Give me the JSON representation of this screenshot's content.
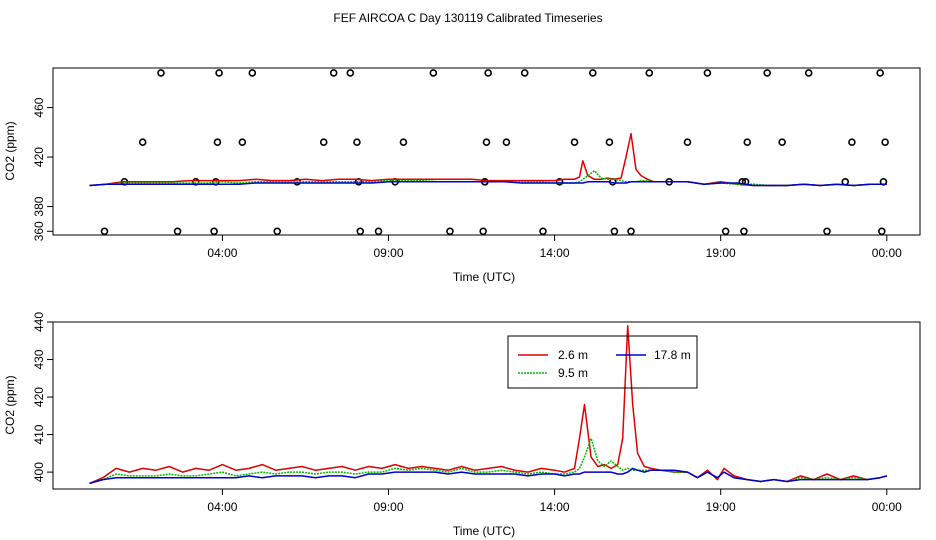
{
  "title": "FEF AIRCOA C  Day 130119  Calibrated Timeseries",
  "colors": {
    "s1": "#e00000",
    "s2": "#00bb00",
    "s3": "#0000cc"
  },
  "chart_data": [
    {
      "type": "line",
      "panel": "top",
      "xlabel": "Time (UTC)",
      "ylabel": "CO2 (ppm)",
      "xlim": [
        -1.1,
        25.0
      ],
      "ylim": [
        357,
        492
      ],
      "xticks": [
        4,
        9,
        14,
        19,
        24
      ],
      "xticklabels": [
        "04:00",
        "09:00",
        "14:00",
        "19:00",
        "00:00"
      ],
      "yticks": [
        360,
        380,
        420,
        460
      ],
      "yticklabels": [
        "360",
        "380",
        "420",
        "460"
      ],
      "calibration_points": {
        "marker": "open-circle",
        "x": [
          0.45,
          1.05,
          1.6,
          2.15,
          2.65,
          3.2,
          3.75,
          3.8,
          3.85,
          3.9,
          4.6,
          4.9,
          5.65,
          6.25,
          7.05,
          7.35,
          7.85,
          8.05,
          8.1,
          8.15,
          8.7,
          9.2,
          9.45,
          10.35,
          10.85,
          11.9,
          11.85,
          11.9,
          11.95,
          12.0,
          12.55,
          13.1,
          13.65,
          14.15,
          14.6,
          15.15,
          15.65,
          15.75,
          15.8,
          16.3,
          16.85,
          17.45,
          18.0,
          18.6,
          19.15,
          19.65,
          19.7,
          19.75,
          19.8,
          20.4,
          20.85,
          21.65,
          22.2,
          22.75,
          22.95,
          23.8,
          23.85,
          23.9,
          23.95
        ],
        "y": [
          360,
          400,
          432,
          488,
          360,
          400,
          360,
          400,
          432,
          488,
          432,
          488,
          360,
          400,
          432,
          488,
          488,
          432,
          400,
          360,
          360,
          400,
          432,
          488,
          360,
          400,
          360,
          400,
          432,
          488,
          432,
          488,
          360,
          400,
          432,
          488,
          432,
          400,
          360,
          360,
          488,
          400,
          432,
          488,
          360,
          400,
          360,
          400,
          432,
          488,
          432,
          488,
          360,
          400,
          432,
          488,
          360,
          400,
          432
        ]
      },
      "x": [
        0.0,
        0.5,
        1.0,
        1.5,
        2.0,
        2.5,
        3.0,
        3.5,
        4.0,
        4.5,
        5.0,
        5.5,
        6.0,
        6.5,
        7.0,
        7.5,
        8.0,
        8.5,
        9.0,
        9.5,
        10.0,
        10.5,
        11.0,
        11.5,
        12.0,
        12.5,
        13.0,
        13.5,
        14.0,
        14.3,
        14.6,
        14.75,
        14.85,
        15.0,
        15.2,
        15.4,
        15.6,
        15.8,
        16.0,
        16.15,
        16.3,
        16.45,
        16.6,
        16.8,
        17.0,
        17.5,
        18.0,
        18.5,
        19.0,
        19.5,
        20.0,
        20.5,
        21.0,
        21.5,
        22.0,
        22.5,
        23.0,
        23.5,
        24.0
      ],
      "series": [
        {
          "name": "2.6 m",
          "values": [
            397,
            398,
            400,
            400,
            400,
            400,
            401,
            401,
            401,
            401,
            402,
            401,
            401,
            402,
            401,
            402,
            402,
            401,
            402,
            402,
            402,
            402,
            402,
            402,
            401,
            401,
            401,
            401,
            401,
            402,
            402,
            404,
            417,
            405,
            402,
            402,
            403,
            402,
            403,
            420,
            439,
            410,
            405,
            402,
            400,
            400,
            400,
            398,
            400,
            398,
            397,
            397,
            397,
            398,
            397,
            398,
            397,
            398,
            398
          ]
        },
        {
          "name": "9.5 m",
          "values": [
            397,
            398,
            399,
            399,
            399,
            399,
            399,
            399,
            400,
            399,
            400,
            400,
            400,
            400,
            400,
            400,
            400,
            400,
            401,
            401,
            401,
            400,
            400,
            400,
            400,
            400,
            400,
            400,
            399,
            399,
            399,
            400,
            402,
            405,
            409,
            403,
            402,
            402,
            401,
            400,
            400,
            400,
            401,
            401,
            400,
            400,
            400,
            398,
            399,
            398,
            398,
            397,
            397,
            398,
            397,
            398,
            397,
            398,
            398
          ]
        },
        {
          "name": "17.8 m",
          "values": [
            397,
            398,
            398,
            398,
            398,
            398,
            398,
            398,
            398,
            398,
            399,
            399,
            399,
            399,
            399,
            399,
            399,
            399,
            400,
            400,
            400,
            400,
            400,
            400,
            400,
            400,
            399,
            399,
            399,
            399,
            399,
            399,
            399,
            400,
            400,
            400,
            400,
            399,
            399,
            399,
            400,
            400,
            400,
            400,
            400,
            400,
            400,
            398,
            399,
            399,
            397,
            397,
            397,
            398,
            397,
            398,
            397,
            398,
            398
          ]
        }
      ]
    },
    {
      "type": "line",
      "panel": "bottom",
      "xlabel": "Time (UTC)",
      "ylabel": "CO2 (ppm)",
      "xlim": [
        -1.1,
        25.0
      ],
      "ylim": [
        395.5,
        440
      ],
      "xticks": [
        4,
        9,
        14,
        19,
        24
      ],
      "xticklabels": [
        "04:00",
        "09:00",
        "14:00",
        "19:00",
        "00:00"
      ],
      "yticks": [
        400,
        410,
        420,
        430,
        440
      ],
      "yticklabels": [
        "400",
        "410",
        "420",
        "430",
        "440"
      ],
      "legend": {
        "position": "top-right",
        "entries": [
          "2.6 m",
          "9.5 m",
          "17.8 m"
        ]
      },
      "x": [
        0.0,
        0.4,
        0.8,
        1.2,
        1.6,
        2.0,
        2.4,
        2.8,
        3.2,
        3.6,
        4.0,
        4.4,
        4.8,
        5.2,
        5.6,
        6.0,
        6.4,
        6.8,
        7.2,
        7.6,
        8.0,
        8.4,
        8.8,
        9.2,
        9.6,
        10.0,
        10.4,
        10.8,
        11.2,
        11.6,
        12.0,
        12.4,
        12.8,
        13.2,
        13.6,
        14.0,
        14.3,
        14.6,
        14.75,
        14.9,
        15.1,
        15.3,
        15.5,
        15.7,
        15.9,
        16.05,
        16.2,
        16.35,
        16.5,
        16.7,
        16.9,
        17.2,
        17.6,
        18.0,
        18.3,
        18.6,
        18.9,
        19.1,
        19.4,
        19.8,
        20.2,
        20.6,
        21.0,
        21.4,
        21.8,
        22.2,
        22.6,
        23.0,
        23.4,
        23.8,
        24.0
      ],
      "series": [
        {
          "name": "2.6 m",
          "values": [
            397,
            398.5,
            401,
            400,
            401,
            400.5,
            401.5,
            400,
            401,
            400.5,
            402,
            400.5,
            401,
            402,
            400.5,
            401,
            401.5,
            400.5,
            401,
            401.5,
            400.5,
            401.5,
            401,
            402,
            401,
            401.5,
            401,
            400.5,
            401.5,
            400.5,
            401,
            401.5,
            400.5,
            400,
            401,
            400.5,
            400,
            401,
            409,
            418,
            404,
            401.5,
            402,
            401,
            402,
            409,
            439,
            418,
            405,
            401.5,
            401,
            400.5,
            400,
            400,
            398.5,
            400.5,
            398,
            401,
            399,
            398,
            397.5,
            398,
            397.5,
            399,
            398,
            399.5,
            398,
            399,
            398,
            398.5,
            399
          ]
        },
        {
          "name": "9.5 m",
          "values": [
            397,
            398,
            399.5,
            399,
            399,
            399,
            399.5,
            399,
            399,
            399.5,
            400,
            399,
            399.5,
            400,
            399.5,
            400,
            400,
            399.5,
            400,
            400,
            399.5,
            400,
            400,
            401,
            400.5,
            401,
            400.5,
            400,
            401,
            400,
            400,
            400.5,
            400,
            399.5,
            400,
            399.5,
            399.5,
            400,
            401,
            404,
            409,
            403,
            401.5,
            403,
            401.5,
            400.5,
            401,
            400.5,
            400.5,
            400.5,
            400.5,
            400.5,
            400,
            400,
            398.5,
            400,
            398.5,
            400,
            398.5,
            398,
            397.5,
            398,
            397.5,
            398.5,
            398,
            398.5,
            398,
            398.5,
            398,
            398.5,
            399
          ]
        },
        {
          "name": "17.8 m",
          "values": [
            397,
            398,
            398.5,
            398.5,
            398.5,
            398.5,
            398.5,
            398.5,
            398.5,
            398.5,
            398.5,
            398.5,
            399,
            398.5,
            399,
            399,
            399,
            398.5,
            399,
            399,
            398.5,
            399.5,
            399.5,
            400,
            400,
            400,
            400,
            399.5,
            400,
            399.5,
            399.5,
            399.5,
            399.5,
            399,
            399.5,
            399.5,
            399,
            399.5,
            399.5,
            400,
            400,
            400,
            400,
            400,
            399.5,
            399.5,
            400,
            401,
            400.5,
            400,
            400.5,
            400.5,
            400.5,
            400,
            398.5,
            400,
            398.5,
            400,
            398.5,
            398,
            397.5,
            398,
            397.5,
            398,
            398,
            398,
            398,
            398,
            398,
            398.5,
            399
          ]
        }
      ]
    }
  ]
}
